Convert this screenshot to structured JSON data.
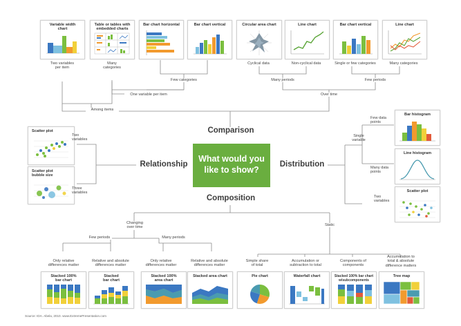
{
  "center": {
    "line1": "What would you",
    "line2": "like to show?"
  },
  "categories": {
    "comparison": "Comparison",
    "relationship": "Relationship",
    "distribution": "Distribution",
    "composition": "Composition"
  },
  "top_cards": [
    {
      "id": "variable-width",
      "t1": "Variable width",
      "t2": "chart",
      "sub1": "Two variables",
      "sub2": "per item"
    },
    {
      "id": "table-embedded",
      "t1": "Table or tables with",
      "t2": "embedded charts",
      "sub1": "Many",
      "sub2": "categories"
    },
    {
      "id": "bar-horizontal",
      "t1": "Bar chart horizontal",
      "t2": "",
      "sub1": "",
      "sub2": ""
    },
    {
      "id": "bar-vertical",
      "t1": "Bar chart vertical",
      "t2": "",
      "sub1": "",
      "sub2": ""
    },
    {
      "id": "circular-area",
      "t1": "Circular area chart",
      "t2": "",
      "sub1": "Cyclical data",
      "sub2": ""
    },
    {
      "id": "line-chart-noncyclical",
      "t1": "Line chart",
      "t2": "",
      "sub1": "Non-cyclical data",
      "sub2": ""
    },
    {
      "id": "bar-vertical-few",
      "t1": "Bar chart vertical",
      "t2": "",
      "sub1": "Single or few categories",
      "sub2": ""
    },
    {
      "id": "line-chart-many",
      "t1": "Line chart",
      "t2": "",
      "sub1": "Many categories",
      "sub2": ""
    }
  ],
  "comparison_tree": {
    "few_categories": "Few categories",
    "many_periods": "Many periods",
    "few_periods": "Few periods",
    "one_variable_per_item": "One variable per item",
    "over_time": "Over time",
    "among_items": "Among items"
  },
  "relationship": {
    "scatter": "Scatter plot",
    "bubble1": "Scatter plot",
    "bubble2": "bubble size",
    "two_variables1": "Two",
    "two_variables2": "variables",
    "three_variables1": "Three",
    "three_variables2": "variables"
  },
  "distribution": {
    "single1": "Single",
    "single2": "variable",
    "few_points1": "Few data",
    "few_points2": "points",
    "many_points1": "Many data",
    "many_points2": "points",
    "two_variables1": "Two",
    "two_variables2": "variables",
    "bar_histogram": "Bar histogram",
    "line_histogram": "Line histogram",
    "scatter": "Scatter plot"
  },
  "composition_tree": {
    "changing1": "Changing",
    "changing2": "over time",
    "static": "Static",
    "few_periods": "Few periods",
    "many_periods": "Many periods"
  },
  "bottom_cards": [
    {
      "id": "stacked-100-bar",
      "l1": "Only relative",
      "l2": "differences matter",
      "l3": "",
      "t1": "Stacked 100%",
      "t2": "bar chart"
    },
    {
      "id": "stacked-bar",
      "l1": "Relative and absolute",
      "l2": "differences matter",
      "l3": "",
      "t1": "Stacked",
      "t2": "bar chart"
    },
    {
      "id": "stacked-100-area",
      "l1": "Only relative",
      "l2": "differences matter",
      "l3": "",
      "t1": "Stacked 100%",
      "t2": "area chart"
    },
    {
      "id": "stacked-area",
      "l1": "Relative and absolute",
      "l2": "differences matter",
      "l3": "",
      "t1": "Stacked area chart",
      "t2": ""
    },
    {
      "id": "pie",
      "l1": "Simple share",
      "l2": "of total",
      "l3": "",
      "t1": "Pie chart",
      "t2": ""
    },
    {
      "id": "waterfall",
      "l1": "Accumulation or",
      "l2": "subtraction to total",
      "l3": "",
      "t1": "Waterfall chart",
      "t2": ""
    },
    {
      "id": "stacked-100-subcomponents",
      "l1": "Components of",
      "l2": "components",
      "l3": "",
      "t1": "Stacked 100% bar chart",
      "t2": "w/subcomponents"
    },
    {
      "id": "tree-map",
      "l1": "Accumulation to",
      "l2": "total & absolute",
      "l3": "difference matters",
      "t1": "Tree map",
      "t2": ""
    }
  ],
  "source": "Source: IDA. Abela, 2010. www.ExtremePresentation.com",
  "colors": {
    "accent": "#6aae3f",
    "line": "#8a8a8a",
    "teal": "#4a9bb0",
    "blue": "#3b78c2",
    "green": "#7bbf3f",
    "orange": "#f29a2e",
    "yellow": "#f1d03a",
    "lightblue": "#7fc1e0"
  }
}
